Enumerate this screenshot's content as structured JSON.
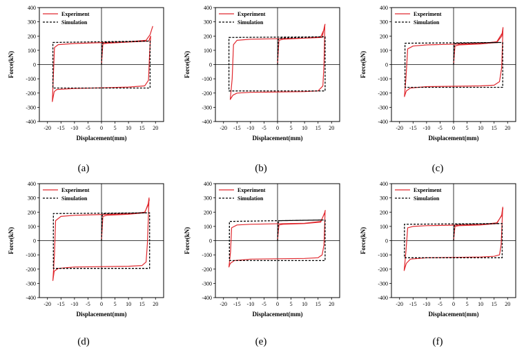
{
  "figure": {
    "panels": [
      {
        "label": "(a)"
      },
      {
        "label": "(b)"
      },
      {
        "label": "(c)"
      },
      {
        "label": "(d)"
      },
      {
        "label": "(e)"
      },
      {
        "label": "(f)"
      }
    ]
  },
  "colors": {
    "experiment": "#e0272d",
    "simulation": "#000000"
  },
  "chart_data": [
    {
      "type": "line",
      "xlabel": "Displacement(mm)",
      "ylabel": "Force(kN)",
      "xlim": [
        -23,
        23
      ],
      "ylim": [
        -400,
        400
      ],
      "xticks": [
        -20,
        -15,
        -10,
        -5,
        0,
        5,
        10,
        15,
        20
      ],
      "yticks": [
        -400,
        -300,
        -200,
        -100,
        0,
        100,
        200,
        300,
        400
      ],
      "legend": "top-left",
      "series": [
        {
          "name": "Experiment",
          "style": "solid",
          "x": [
            0,
            0.5,
            2,
            10,
            17.5,
            18.2,
            17.8,
            17.4,
            16,
            10,
            -10,
            -16.5,
            -17.5,
            -18.2,
            -17.8,
            -17.4,
            -16,
            -10,
            10,
            16.5,
            18,
            19
          ],
          "y": [
            0,
            145,
            150,
            158,
            165,
            200,
            80,
            -110,
            -150,
            -158,
            -168,
            -175,
            -190,
            -260,
            -80,
            120,
            140,
            148,
            160,
            170,
            210,
            270
          ]
        },
        {
          "name": "Simulation",
          "style": "dashed",
          "x": [
            0,
            0.3,
            1,
            17,
            18,
            18,
            -17,
            -18,
            -18,
            17
          ],
          "y": [
            0,
            150,
            155,
            165,
            165,
            -165,
            -165,
            -165,
            155,
            165
          ]
        }
      ]
    },
    {
      "type": "line",
      "xlabel": "Displacement(mm)",
      "ylabel": "Force(kN)",
      "xlim": [
        -23,
        23
      ],
      "ylim": [
        -400,
        400
      ],
      "xticks": [
        -20,
        -15,
        -10,
        -5,
        0,
        5,
        10,
        15,
        20
      ],
      "yticks": [
        -400,
        -300,
        -200,
        -100,
        0,
        100,
        200,
        300,
        400
      ],
      "legend": "top-left",
      "series": [
        {
          "name": "Experiment",
          "style": "solid",
          "x": [
            0,
            0.5,
            2,
            10,
            16.5,
            17.5,
            17.2,
            16.8,
            15,
            10,
            -10,
            -15,
            -16.5,
            -17.5,
            -16.8,
            -16.3,
            -15,
            -10,
            10,
            16,
            17.3,
            17.6
          ],
          "y": [
            0,
            170,
            178,
            185,
            190,
            280,
            0,
            -150,
            -185,
            -190,
            -195,
            -200,
            -215,
            -245,
            -100,
            140,
            170,
            178,
            185,
            195,
            250,
            285
          ]
        },
        {
          "name": "Simulation",
          "style": "dashed",
          "x": [
            0,
            0.3,
            1,
            16.5,
            17.6,
            17.6,
            -17,
            -18,
            -18,
            16.5
          ],
          "y": [
            0,
            180,
            185,
            195,
            195,
            -185,
            -185,
            -185,
            190,
            195
          ]
        }
      ]
    },
    {
      "type": "line",
      "xlabel": "Displacement(mm)",
      "ylabel": "Force(kN)",
      "xlim": [
        -23,
        23
      ],
      "ylim": [
        -400,
        400
      ],
      "xticks": [
        -20,
        -15,
        -10,
        -5,
        0,
        5,
        10,
        15,
        20
      ],
      "yticks": [
        -400,
        -300,
        -200,
        -100,
        0,
        100,
        200,
        300,
        400
      ],
      "legend": "top-left",
      "series": [
        {
          "name": "Experiment",
          "style": "solid",
          "x": [
            0,
            0.5,
            2,
            10,
            16,
            17.8,
            18.3,
            17.8,
            17,
            15,
            10,
            -10,
            -16,
            -17.5,
            -18.2,
            -17.6,
            -17,
            -15,
            -10,
            10,
            16,
            18,
            18.3
          ],
          "y": [
            0,
            130,
            138,
            145,
            155,
            200,
            260,
            -20,
            -120,
            -145,
            -150,
            -155,
            -165,
            -185,
            -225,
            -90,
            110,
            130,
            138,
            148,
            160,
            220,
            255
          ]
        },
        {
          "name": "Simulation",
          "style": "dashed",
          "x": [
            0,
            0.3,
            1,
            17,
            18.2,
            18.2,
            -16.5,
            -18,
            -18,
            17
          ],
          "y": [
            0,
            145,
            150,
            155,
            155,
            -160,
            -160,
            -160,
            150,
            155
          ]
        }
      ]
    },
    {
      "type": "line",
      "xlabel": "Displacement(mm)",
      "ylabel": "Force(kN)",
      "xlim": [
        -23,
        23
      ],
      "ylim": [
        -400,
        400
      ],
      "xticks": [
        -20,
        -15,
        -10,
        -5,
        0,
        5,
        10,
        15,
        20
      ],
      "yticks": [
        -400,
        -300,
        -200,
        -100,
        0,
        100,
        200,
        300,
        400
      ],
      "legend": "top-left",
      "series": [
        {
          "name": "Experiment",
          "style": "solid",
          "x": [
            0,
            0.5,
            2,
            10,
            16,
            17.3,
            17.6,
            17,
            16.5,
            15,
            10,
            -10,
            -16,
            -17.5,
            -18,
            -17.4,
            -17,
            -15,
            -10,
            10,
            16,
            17.3,
            17.7
          ],
          "y": [
            0,
            170,
            178,
            185,
            195,
            260,
            300,
            -20,
            -150,
            -175,
            -180,
            -185,
            -195,
            -215,
            -280,
            -100,
            140,
            170,
            178,
            188,
            200,
            250,
            290
          ]
        },
        {
          "name": "Simulation",
          "style": "dashed",
          "x": [
            0,
            0.3,
            1,
            16.5,
            17.8,
            17.8,
            -16.5,
            -17.8,
            -17.8,
            16.5
          ],
          "y": [
            0,
            185,
            190,
            195,
            195,
            -195,
            -195,
            -195,
            190,
            195
          ]
        }
      ]
    },
    {
      "type": "line",
      "xlabel": "Displacement(mm)",
      "ylabel": "Force(kN)",
      "xlim": [
        -23,
        23
      ],
      "ylim": [
        -400,
        400
      ],
      "xticks": [
        -20,
        -15,
        -10,
        -5,
        0,
        5,
        10,
        15,
        20
      ],
      "yticks": [
        -400,
        -300,
        -200,
        -100,
        0,
        100,
        200,
        300,
        400
      ],
      "legend": "top-left",
      "series": [
        {
          "name": "Experiment",
          "style": "solid",
          "x": [
            0,
            0.5,
            2,
            10,
            16,
            17.5,
            17.6,
            17.2,
            16.5,
            15,
            10,
            -10,
            -16,
            -17.5,
            -18,
            -17.4,
            -17,
            -15,
            -10,
            10,
            16,
            17.4,
            17.7
          ],
          "y": [
            0,
            110,
            115,
            120,
            130,
            200,
            210,
            -30,
            -100,
            -120,
            -125,
            -130,
            -140,
            -160,
            -185,
            -80,
            90,
            110,
            115,
            122,
            135,
            190,
            215
          ]
        },
        {
          "name": "Simulation",
          "style": "dashed",
          "x": [
            0,
            0.3,
            1,
            16.5,
            17.6,
            17.6,
            -16.5,
            -17.8,
            -17.8,
            16.5
          ],
          "y": [
            0,
            130,
            140,
            145,
            145,
            -140,
            -140,
            -140,
            135,
            145
          ]
        }
      ]
    },
    {
      "type": "line",
      "xlabel": "Displacement(mm)",
      "ylabel": "Force(kN)",
      "xlim": [
        -23,
        23
      ],
      "ylim": [
        -400,
        400
      ],
      "xticks": [
        -20,
        -15,
        -10,
        -5,
        0,
        5,
        10,
        15,
        20
      ],
      "yticks": [
        -400,
        -300,
        -200,
        -100,
        0,
        100,
        200,
        300,
        400
      ],
      "legend": "top-left",
      "series": [
        {
          "name": "Experiment",
          "style": "solid",
          "x": [
            0,
            0.5,
            2,
            10,
            16,
            17.8,
            18.2,
            17.6,
            17,
            15,
            10,
            -10,
            -16,
            -17.5,
            -18.3,
            -17.6,
            -17,
            -15,
            -10,
            10,
            16,
            17.8,
            18.3
          ],
          "y": [
            0,
            100,
            105,
            110,
            120,
            180,
            235,
            -30,
            -100,
            -110,
            -115,
            -120,
            -130,
            -160,
            -210,
            -70,
            90,
            100,
            105,
            112,
            125,
            175,
            230
          ]
        },
        {
          "name": "Simulation",
          "style": "dashed",
          "x": [
            0,
            0.3,
            1,
            17,
            18,
            18,
            -17,
            -18.2,
            -18.2,
            17
          ],
          "y": [
            0,
            110,
            115,
            120,
            120,
            -120,
            -120,
            -120,
            115,
            120
          ]
        }
      ]
    }
  ]
}
